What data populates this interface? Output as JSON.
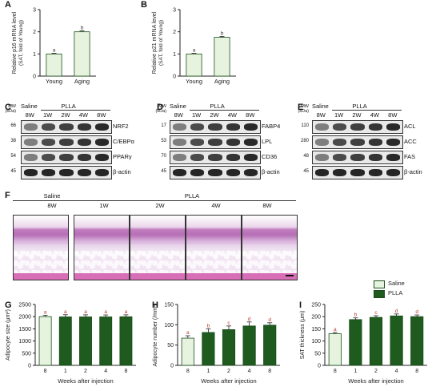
{
  "panel_letters": {
    "a": "A",
    "b": "B",
    "c": "C",
    "d": "D",
    "e": "E",
    "f": "F",
    "g": "G",
    "h": "H",
    "i": "I"
  },
  "colors": {
    "light_bar": "#e6f4df",
    "dark_bar": "#1f5a1f",
    "bar_edge": "#1b4d1b",
    "sig_red": "#c0392b",
    "sig_dark": "#333333"
  },
  "mw_header": "MW\n(kDa)",
  "blot_headers": {
    "saline": "Saline",
    "plla": "PLLA"
  },
  "blot_lanes": [
    "8W",
    "1W",
    "2W",
    "4W",
    "8W"
  ],
  "blot_c": {
    "rows": [
      {
        "mw": "66",
        "label": "NRF2"
      },
      {
        "mw": "38",
        "label": "C/EBPα"
      },
      {
        "mw": "54",
        "label": "PPARγ"
      },
      {
        "mw": "45",
        "label": "β-actin"
      }
    ]
  },
  "blot_d": {
    "rows": [
      {
        "mw": "17",
        "label": "FABP4"
      },
      {
        "mw": "53",
        "label": "LPL"
      },
      {
        "mw": "70",
        "label": "CD36"
      },
      {
        "mw": "45",
        "label": "β-actin"
      }
    ]
  },
  "blot_e": {
    "rows": [
      {
        "mw": "110",
        "label": "ACL"
      },
      {
        "mw": "280",
        "label": "ACC"
      },
      {
        "mw": "48",
        "label": "FAS"
      },
      {
        "mw": "45",
        "label": "β-actin"
      }
    ]
  },
  "histology": {
    "saline_header": "Saline",
    "saline_lane": "8W",
    "plla_header": "PLLA",
    "plla_lanes": [
      "1W",
      "2W",
      "4W",
      "8W"
    ]
  },
  "legend": {
    "saline": "Saline",
    "plla": "PLLA"
  },
  "chart_data": [
    {
      "type": "bar",
      "panel": "A",
      "categories": [
        "Young",
        "Aging"
      ],
      "values": [
        1.0,
        2.0
      ],
      "errors": [
        0.03,
        0.04
      ],
      "sig": [
        "a",
        "b"
      ],
      "ylabel_line1": "Relative p16 mRNA level",
      "ylabel_line2": "(SAT, fold of Young)",
      "ylim": [
        0,
        3
      ],
      "yticks": [
        "0",
        "1",
        "2",
        "3"
      ]
    },
    {
      "type": "bar",
      "panel": "B",
      "categories": [
        "Young",
        "Aging"
      ],
      "values": [
        1.0,
        1.75
      ],
      "errors": [
        0.03,
        0.04
      ],
      "sig": [
        "a",
        "b"
      ],
      "ylabel_line1": "Relative p21 mRNA level",
      "ylabel_line2": "(SAT, fold of Young)",
      "ylim": [
        0,
        3
      ],
      "yticks": [
        "0",
        "1",
        "2",
        "3"
      ]
    },
    {
      "type": "bar",
      "panel": "G",
      "categories": [
        "8",
        "1",
        "2",
        "4",
        "8"
      ],
      "values": [
        2000,
        1990,
        1990,
        1990,
        1995
      ],
      "errors": [
        60,
        90,
        85,
        80,
        80
      ],
      "sig": [
        "a",
        "a",
        "a",
        "a",
        "a"
      ],
      "ylabel": "Adipocyte size (μm²)",
      "xlabel": "Weeks after injection",
      "ylim": [
        0,
        2500
      ],
      "yticks": [
        "0",
        "500",
        "1000",
        "1500",
        "2000",
        "2500"
      ]
    },
    {
      "type": "bar",
      "panel": "H",
      "categories": [
        "8",
        "1",
        "2",
        "4",
        "8"
      ],
      "values": [
        67,
        81,
        88,
        97,
        99
      ],
      "errors": [
        6,
        9,
        9,
        10,
        6
      ],
      "sig": [
        "a",
        "b",
        "c",
        "d",
        "d"
      ],
      "ylabel": "Adipocyte number (/mm²)",
      "xlabel": "Weeks after injection",
      "ylim": [
        0,
        150
      ],
      "yticks": [
        "0",
        "50",
        "100",
        "150"
      ]
    },
    {
      "type": "bar",
      "panel": "I",
      "categories": [
        "8",
        "1",
        "2",
        "4",
        "8"
      ],
      "values": [
        130,
        188,
        197,
        203,
        200
      ],
      "errors": [
        5,
        7,
        7,
        8,
        7
      ],
      "sig": [
        "a",
        "b",
        "c",
        "d",
        "d"
      ],
      "ylabel": "SAT thickness (μm)",
      "xlabel": "Weeks after injection",
      "ylim": [
        0,
        250
      ],
      "yticks": [
        "0",
        "50",
        "100",
        "150",
        "200",
        "250"
      ]
    }
  ]
}
